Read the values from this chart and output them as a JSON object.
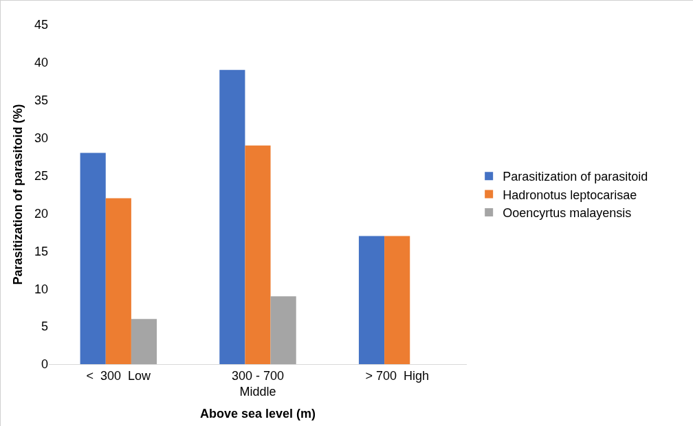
{
  "chart_data": {
    "type": "bar",
    "xlabel": "Above sea level (m)",
    "ylabel": "Parasitization of parasitoid (%)",
    "categories": [
      "<  300  Low",
      "300 - 700\nMiddle",
      "> 700  High"
    ],
    "series": [
      {
        "name": "Parasitization of parasitoid",
        "color": "#4472c4",
        "values": [
          28,
          39,
          17
        ]
      },
      {
        "name": "Hadronotus leptocarisae",
        "color": "#ed7d31",
        "values": [
          22,
          29,
          17
        ]
      },
      {
        "name": "Ooencyrtus malayensis",
        "color": "#a5a5a5",
        "values": [
          6,
          9,
          0
        ]
      }
    ],
    "ylim": [
      0,
      45
    ],
    "yticks": [
      0,
      5,
      10,
      15,
      20,
      25,
      30,
      35,
      40,
      45
    ],
    "grid": false,
    "legend": "right"
  }
}
